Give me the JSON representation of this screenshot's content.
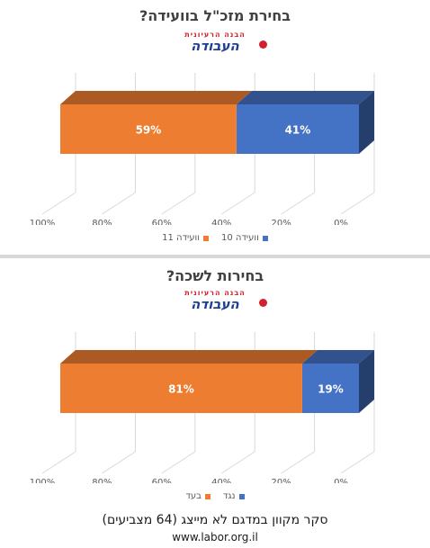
{
  "chart_data": [
    {
      "type": "bar",
      "orientation": "horizontal-stacked-3d",
      "title": "בחירת מזכ\"ל בוועידה?",
      "logo": {
        "top_text": "הבנה הרעיונית",
        "sub_text": "ועד הנוער",
        "main_text": "העבודה"
      },
      "x_axis": {
        "ticks": [
          "100%",
          "80%",
          "60%",
          "40%",
          "20%",
          "0%"
        ],
        "range": [
          0,
          100
        ],
        "reversed": true
      },
      "grid": true,
      "series": [
        {
          "name": "וועידה 10",
          "value": 41,
          "label": "41%",
          "color": "#4472c4"
        },
        {
          "name": "וועידה 11",
          "value": 59,
          "label": "59%",
          "color": "#ed7d31"
        }
      ],
      "legend_position": "bottom"
    },
    {
      "type": "bar",
      "orientation": "horizontal-stacked-3d",
      "title": "בחירות לשכה?",
      "logo": {
        "top_text": "הבנה הרעיונית",
        "sub_text": "ועד הנוער",
        "main_text": "העבודה"
      },
      "x_axis": {
        "ticks": [
          "100%",
          "80%",
          "60%",
          "40%",
          "20%",
          "0%"
        ],
        "range": [
          0,
          100
        ],
        "reversed": true
      },
      "grid": true,
      "series": [
        {
          "name": "נגד",
          "value": 19,
          "label": "19%",
          "color": "#4472c4"
        },
        {
          "name": "בעד",
          "value": 81,
          "label": "81%",
          "color": "#ed7d31"
        }
      ],
      "legend_position": "bottom"
    }
  ],
  "footer": {
    "caption": "סקר מקוון במדגם לא מייצג (64 מצביעים)",
    "website": "www.labor.org.il"
  }
}
